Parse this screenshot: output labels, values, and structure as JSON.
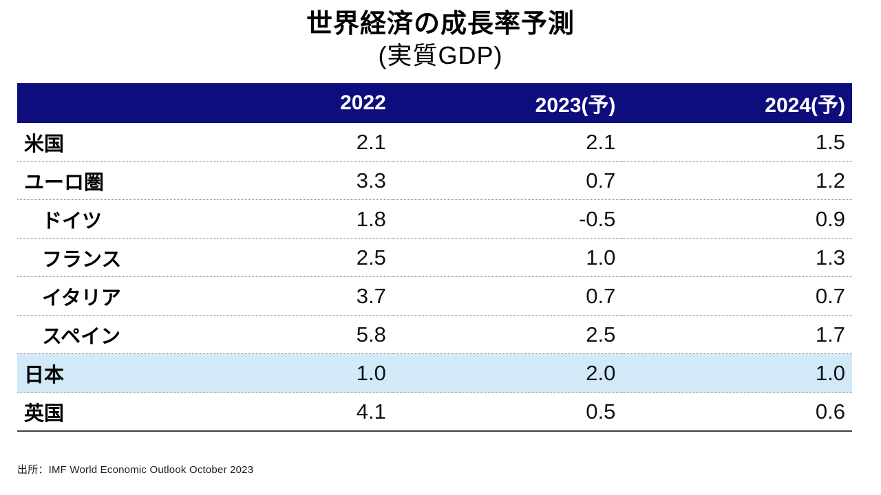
{
  "chart_data": {
    "type": "table",
    "title": "世界経済の成長率予測",
    "subtitle": "(実質GDP)",
    "columns": [
      "",
      "2022",
      "2023(予)",
      "2024(予)"
    ],
    "rows": [
      {
        "label": "米国",
        "indent": false,
        "highlight": false,
        "values": [
          "2.1",
          "2.1",
          "1.5"
        ]
      },
      {
        "label": "ユーロ圏",
        "indent": false,
        "highlight": false,
        "values": [
          "3.3",
          "0.7",
          "1.2"
        ]
      },
      {
        "label": "ドイツ",
        "indent": true,
        "highlight": false,
        "values": [
          "1.8",
          "-0.5",
          "0.9"
        ]
      },
      {
        "label": "フランス",
        "indent": true,
        "highlight": false,
        "values": [
          "2.5",
          "1.0",
          "1.3"
        ]
      },
      {
        "label": "イタリア",
        "indent": true,
        "highlight": false,
        "values": [
          "3.7",
          "0.7",
          "0.7"
        ]
      },
      {
        "label": "スペイン",
        "indent": true,
        "highlight": false,
        "values": [
          "5.8",
          "2.5",
          "1.7"
        ]
      },
      {
        "label": "日本",
        "indent": false,
        "highlight": true,
        "values": [
          "1.0",
          "2.0",
          "1.0"
        ]
      },
      {
        "label": "英国",
        "indent": false,
        "highlight": false,
        "values": [
          "4.1",
          "0.5",
          "0.6"
        ]
      }
    ],
    "source": "出所：IMF World Economic Outlook October 2023"
  },
  "colors": {
    "header_bg": "#0d0d7e",
    "header_text": "#ffffff",
    "highlight_bg": "#d2e9f7"
  }
}
